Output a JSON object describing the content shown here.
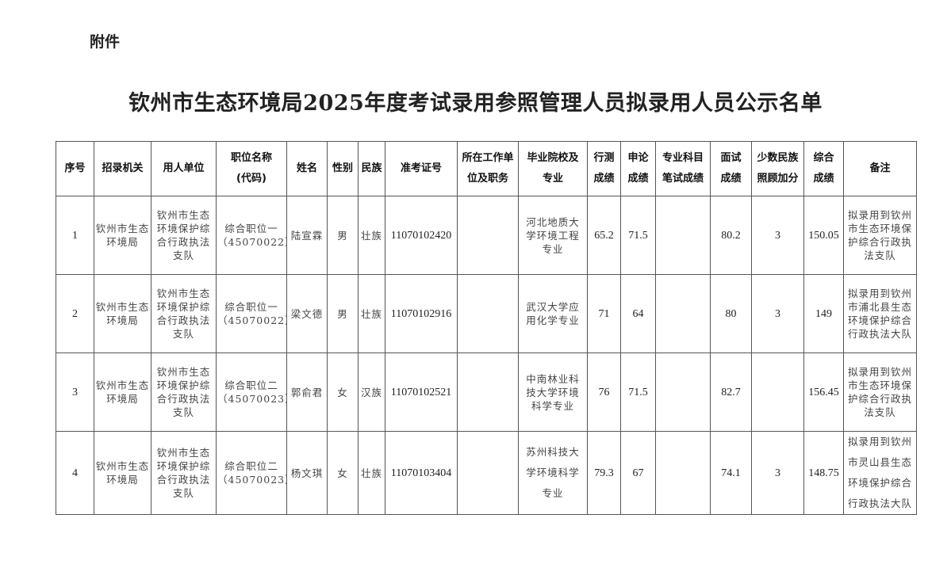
{
  "attachment_label": "附件",
  "title": "钦州市生态环境局2025年度考试录用参照管理人员拟录用人员公示名单",
  "table": {
    "headers": [
      "序号",
      "招录机关",
      "用人单位",
      "职位名称\n(代码)",
      "姓名",
      "性别",
      "民族",
      "准考证号",
      "所在工作单\n位及职务",
      "毕业院校及\n专业",
      "行测\n成绩",
      "申论\n成绩",
      "专业科目\n笔试成绩",
      "面试\n成绩",
      "少数民族\n照顾加分",
      "综合\n成绩",
      "备注"
    ],
    "rows": [
      [
        "1",
        "钦州市生态\n环境局",
        "钦州市生态\n环境保护综\n合行政执法\n支队",
        "综合职位一\n（45070022）",
        "陆宣霖",
        "男",
        "壮族",
        "11070102420",
        "",
        "河北地质大\n学环境工程\n专业",
        "65.2",
        "71.5",
        "",
        "80.2",
        "3",
        "150.05",
        "拟录用到钦州\n市生态环境保\n护综合行政执\n法支队"
      ],
      [
        "2",
        "钦州市生态\n环境局",
        "钦州市生态\n环境保护综\n合行政执法\n支队",
        "综合职位一\n（45070022）",
        "梁文德",
        "男",
        "壮族",
        "11070102916",
        "",
        "武汉大学应\n用化学专业",
        "71",
        "64",
        "",
        "80",
        "3",
        "149",
        "拟录用到钦州\n市浦北县生态\n环境保护综合\n行政执法大队"
      ],
      [
        "3",
        "钦州市生态\n环境局",
        "钦州市生态\n环境保护综\n合行政执法\n支队",
        "综合职位二\n（45070023）",
        "郭俞君",
        "女",
        "汉族",
        "11070102521",
        "",
        "中南林业科\n技大学环境\n科学专业",
        "76",
        "71.5",
        "",
        "82.7",
        "",
        "156.45",
        "拟录用到钦州\n市生态环境保\n护综合行政执\n法支队"
      ],
      [
        "4",
        "钦州市生态\n环境局",
        "钦州市生态\n环境保护综\n合行政执法\n支队",
        "综合职位二\n（45070023）",
        "杨文琪",
        "女",
        "壮族",
        "11070103404",
        "",
        "苏州科技大\n学环境科学\n专业",
        "79.3",
        "67",
        "",
        "74.1",
        "3",
        "148.75",
        "拟录用到钦州\n市灵山县生态\n环境保护综合\n行政执法大队"
      ]
    ]
  }
}
